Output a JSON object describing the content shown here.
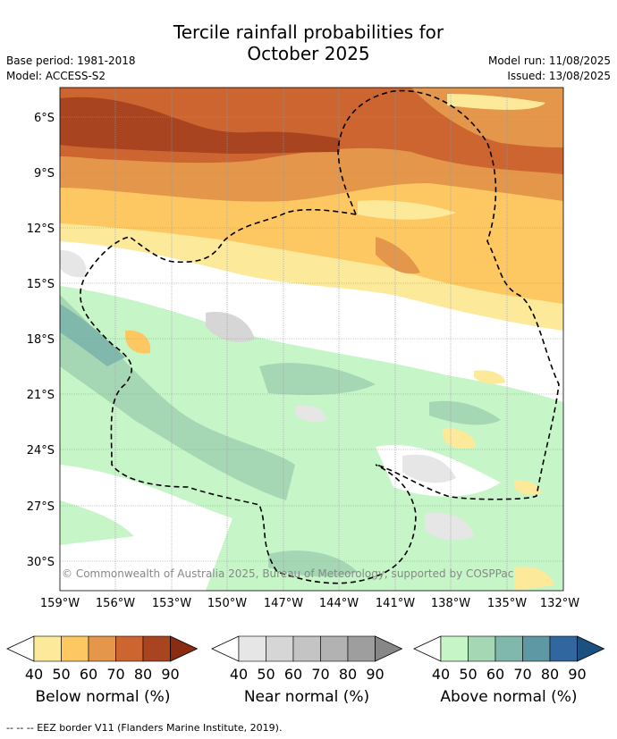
{
  "title_line1": "Tercile rainfall probabilities for",
  "title_line2": "October 2025",
  "base_period": "Base period: 1981-2018",
  "model": "Model: ACCESS-S2",
  "model_run": "Model run: 11/08/2025",
  "issued": "Issued: 13/08/2025",
  "lat_labels": [
    "6°S",
    "9°S",
    "12°S",
    "15°S",
    "18°S",
    "21°S",
    "24°S",
    "27°S",
    "30°S"
  ],
  "lon_labels": [
    "159°W",
    "156°W",
    "153°W",
    "150°W",
    "147°W",
    "144°W",
    "141°W",
    "138°W",
    "135°W",
    "132°W"
  ],
  "copyright": "© Commonwealth of Australia 2025, Bureau of Meteorology, supported by COSPPac",
  "colorbars": [
    {
      "label": "Below normal (%)",
      "ticks": [
        "40",
        "50",
        "60",
        "70",
        "80",
        "90"
      ],
      "colors": [
        "#fde99a",
        "#fdc862",
        "#e4964a",
        "#cc6530",
        "#a94421",
        "#8a2c12"
      ]
    },
    {
      "label": "Near normal (%)",
      "ticks": [
        "40",
        "50",
        "60",
        "70",
        "80",
        "90"
      ],
      "colors": [
        "#e6e6e6",
        "#d6d6d6",
        "#c4c4c4",
        "#b2b2b2",
        "#9e9e9e",
        "#878787"
      ]
    },
    {
      "label": "Above normal (%)",
      "ticks": [
        "40",
        "50",
        "60",
        "70",
        "80",
        "90"
      ],
      "colors": [
        "#c6f5c8",
        "#a5d7b5",
        "#80b9ac",
        "#5e98a4",
        "#2f679e",
        "#1b5180"
      ]
    }
  ],
  "legend_footnote": "--  --  -- EEZ border V11 (Flanders Marine Institute, 2019)."
}
